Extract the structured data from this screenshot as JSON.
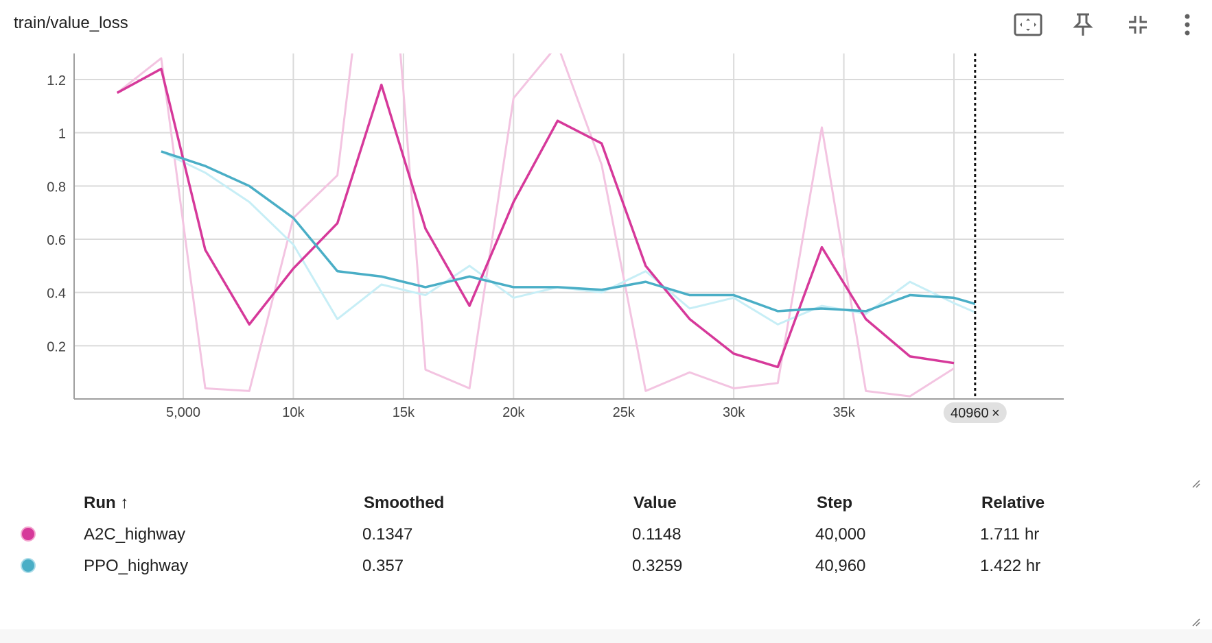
{
  "card": {
    "title": "train/value_loss",
    "toolbar_icons": [
      "fit-domain-icon",
      "pin-icon",
      "collapse-icon",
      "more-vert-icon"
    ]
  },
  "chart_data": {
    "type": "line",
    "xlim": [
      0,
      45000
    ],
    "ylim": [
      0,
      1.3
    ],
    "x_ticks": [
      5000,
      10000,
      15000,
      20000,
      25000,
      30000,
      35000
    ],
    "x_tick_labels": [
      "5,000",
      "10k",
      "15k",
      "20k",
      "25k",
      "30k",
      "35k"
    ],
    "y_ticks": [
      0.2,
      0.4,
      0.6,
      0.8,
      1.0,
      1.2
    ],
    "y_tick_labels": [
      "0.2",
      "0.4",
      "0.6",
      "0.8",
      "1",
      "1.2"
    ],
    "grid": true,
    "hover_step": 40960,
    "hover_label": "40960",
    "series": [
      {
        "name": "A2C_highway",
        "color": "#d6399a",
        "raw_color": "#f3c4e1",
        "x": [
          2000,
          4000,
          6000,
          8000,
          10000,
          12000,
          14000,
          16000,
          18000,
          20000,
          22000,
          24000,
          26000,
          28000,
          30000,
          32000,
          34000,
          36000,
          38000,
          40000
        ],
        "raw": [
          1.15,
          1.28,
          0.04,
          0.03,
          0.68,
          0.84,
          2.2,
          0.11,
          0.04,
          1.13,
          1.33,
          0.88,
          0.03,
          0.1,
          0.04,
          0.06,
          1.02,
          0.03,
          0.01,
          0.1148
        ],
        "smoothed": [
          1.15,
          1.24,
          0.56,
          0.28,
          0.49,
          0.66,
          1.18,
          0.64,
          0.35,
          0.74,
          1.045,
          0.96,
          0.5,
          0.3,
          0.17,
          0.12,
          0.57,
          0.3,
          0.16,
          0.1347
        ]
      },
      {
        "name": "PPO_highway",
        "color": "#4aaec6",
        "raw_color": "#c7eef6",
        "x": [
          4000,
          6000,
          8000,
          10000,
          12000,
          14000,
          16000,
          18000,
          20000,
          22000,
          24000,
          26000,
          28000,
          30000,
          32000,
          34000,
          36000,
          38000,
          40000,
          40960
        ],
        "raw": [
          0.93,
          0.85,
          0.74,
          0.58,
          0.3,
          0.43,
          0.39,
          0.5,
          0.38,
          0.42,
          0.4,
          0.48,
          0.34,
          0.38,
          0.28,
          0.35,
          0.32,
          0.44,
          0.36,
          0.3259
        ],
        "smoothed": [
          0.93,
          0.875,
          0.8,
          0.68,
          0.48,
          0.46,
          0.42,
          0.46,
          0.42,
          0.42,
          0.41,
          0.44,
          0.39,
          0.39,
          0.33,
          0.34,
          0.33,
          0.39,
          0.38,
          0.357
        ]
      }
    ]
  },
  "table": {
    "headers": {
      "run": "Run",
      "smoothed": "Smoothed",
      "value": "Value",
      "step": "Step",
      "relative": "Relative"
    },
    "sort_arrow": "↑",
    "rows": [
      {
        "run": "A2C_highway",
        "smoothed": "0.1347",
        "value": "0.1148",
        "step": "40,000",
        "relative": "1.711 hr",
        "color": "#d6399a"
      },
      {
        "run": "PPO_highway",
        "smoothed": "0.357",
        "value": "0.3259",
        "step": "40,960",
        "relative": "1.422 hr",
        "color": "#4aaec6"
      }
    ]
  }
}
